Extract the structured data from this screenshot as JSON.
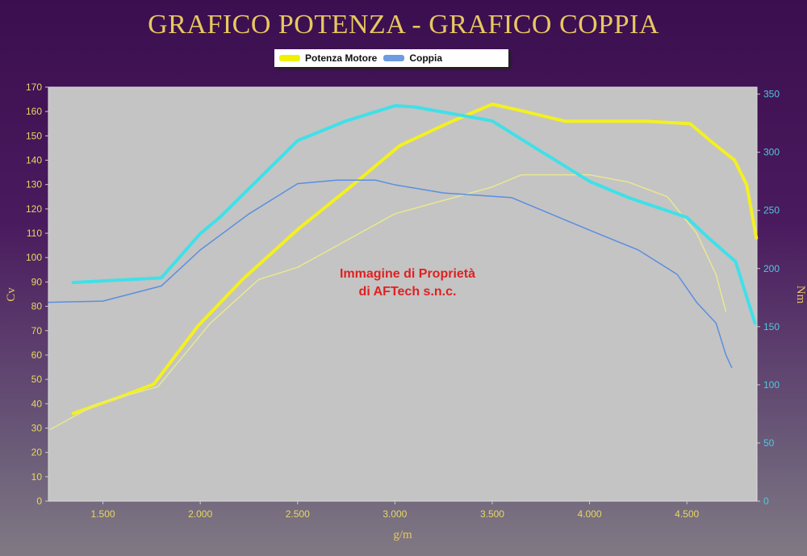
{
  "title": "GRAFICO POTENZA - GRAFICO COPPIA",
  "legend": [
    {
      "label": "Potenza Motore",
      "color": "#f0f000"
    },
    {
      "label": "Coppia",
      "color": "#6d9ce0"
    }
  ],
  "watermark": [
    "Immagine di Proprietà",
    "di AFTech s.n.c."
  ],
  "chart_data": {
    "type": "line",
    "title": "GRAFICO POTENZA - GRAFICO COPPIA",
    "xlabel": "g/m",
    "ylabel": "Cv",
    "y2label": "Nm",
    "xlim": [
      1220,
      4860
    ],
    "ylim": [
      0,
      170
    ],
    "y2lim": [
      0,
      356
    ],
    "xticks": [
      1500,
      2000,
      2500,
      3000,
      3500,
      4000,
      4500
    ],
    "xtick_labels": [
      "1.500",
      "2.000",
      "2.500",
      "3.000",
      "3.500",
      "4.000",
      "4.500"
    ],
    "yticks": [
      0,
      10,
      20,
      30,
      40,
      50,
      60,
      70,
      80,
      90,
      100,
      110,
      120,
      130,
      140,
      150,
      160,
      170
    ],
    "y2ticks": [
      0,
      50,
      100,
      150,
      200,
      250,
      300,
      350
    ],
    "grid": false,
    "legend_position": "top",
    "series": [
      {
        "name": "Potenza Motore",
        "axis": "left",
        "color": "#f4f020",
        "width": 4,
        "x": [
          1347,
          1595,
          1761,
          1989,
          2217,
          2507,
          2756,
          3025,
          3294,
          3501,
          3667,
          3874,
          4289,
          4517,
          4620,
          4745,
          4807,
          4857
        ],
        "y": [
          36,
          43,
          48,
          72,
          91,
          112,
          128,
          146,
          156,
          163,
          160,
          156,
          156,
          155,
          148,
          140,
          130,
          108
        ]
      },
      {
        "axis": "left",
        "color": "#e8e890",
        "width": 1.5,
        "x": [
          1231,
          1471,
          1782,
          2051,
          2300,
          2500,
          3000,
          3500,
          3650,
          4000,
          4200,
          4400,
          4550,
          4650,
          4700
        ],
        "y": [
          29.5,
          40,
          47,
          73,
          91,
          96,
          118,
          129,
          134,
          134,
          131,
          125,
          110,
          93,
          78
        ]
      },
      {
        "axis": "right",
        "color": "#40e0e8",
        "width": 4,
        "x": [
          1347,
          1800,
          2000,
          2100,
          2500,
          2750,
          3000,
          3100,
          3500,
          3700,
          4000,
          4200,
          4500,
          4600,
          4750,
          4850
        ],
        "y": [
          188,
          192,
          230,
          244,
          310,
          327,
          340,
          339,
          327,
          306,
          275,
          261,
          244,
          228,
          206,
          153
        ]
      },
      {
        "name": "Coppia",
        "axis": "right",
        "color": "#5a8ee0",
        "width": 1.5,
        "x": [
          1220,
          1500,
          1800,
          2000,
          2250,
          2500,
          2700,
          2900,
          3000,
          3250,
          3600,
          4000,
          4250,
          4450,
          4550,
          4650,
          4700,
          4730
        ],
        "y": [
          171,
          172,
          185,
          216,
          247,
          273,
          276,
          276,
          272,
          265,
          261,
          233,
          216,
          195,
          171,
          153,
          126,
          115
        ]
      }
    ]
  }
}
